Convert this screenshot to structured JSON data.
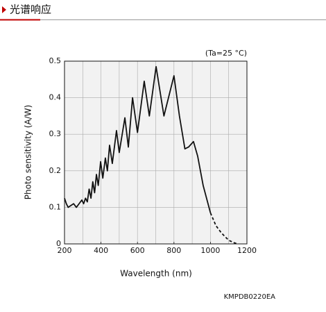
{
  "header": {
    "title": "光谱响应"
  },
  "chart_data": {
    "type": "line",
    "annotation": "(Ta=25 °C)",
    "x_label": "Wavelength (nm)",
    "y_label": "Photo sensitivity (A/W)",
    "code": "KMPDB0220EA",
    "xlim": [
      200,
      1200
    ],
    "xticks": [
      200,
      400,
      600,
      800,
      1000,
      1200
    ],
    "ylim": [
      0,
      0.5
    ],
    "yticks": [
      0,
      0.1,
      0.2,
      0.3,
      0.4,
      0.5
    ],
    "grid_xticks": [
      300,
      400,
      500,
      600,
      700,
      800,
      900,
      1000,
      1100
    ],
    "grid": true,
    "series": [
      {
        "color": "#111111",
        "dashed": false,
        "x": [
          200,
          210,
          220,
          235,
          250,
          265,
          280,
          295,
          305,
          315,
          325,
          335,
          345,
          355,
          365,
          375,
          385,
          398,
          410,
          424,
          435,
          447,
          462,
          485,
          500,
          531,
          550,
          573,
          600,
          637,
          665,
          702,
          745,
          800,
          830,
          860,
          880,
          907,
          930,
          960,
          1000
        ],
        "values": [
          0.125,
          0.11,
          0.1,
          0.105,
          0.11,
          0.1,
          0.11,
          0.12,
          0.11,
          0.125,
          0.115,
          0.15,
          0.125,
          0.17,
          0.14,
          0.19,
          0.16,
          0.225,
          0.18,
          0.235,
          0.2,
          0.27,
          0.22,
          0.31,
          0.25,
          0.345,
          0.265,
          0.4,
          0.305,
          0.445,
          0.35,
          0.485,
          0.35,
          0.46,
          0.35,
          0.26,
          0.265,
          0.28,
          0.24,
          0.16,
          0.085
        ]
      },
      {
        "color": "#111111",
        "dashed": true,
        "x": [
          1000,
          1030,
          1060,
          1100,
          1130,
          1150
        ],
        "values": [
          0.085,
          0.05,
          0.03,
          0.01,
          0.003,
          0
        ]
      }
    ]
  }
}
